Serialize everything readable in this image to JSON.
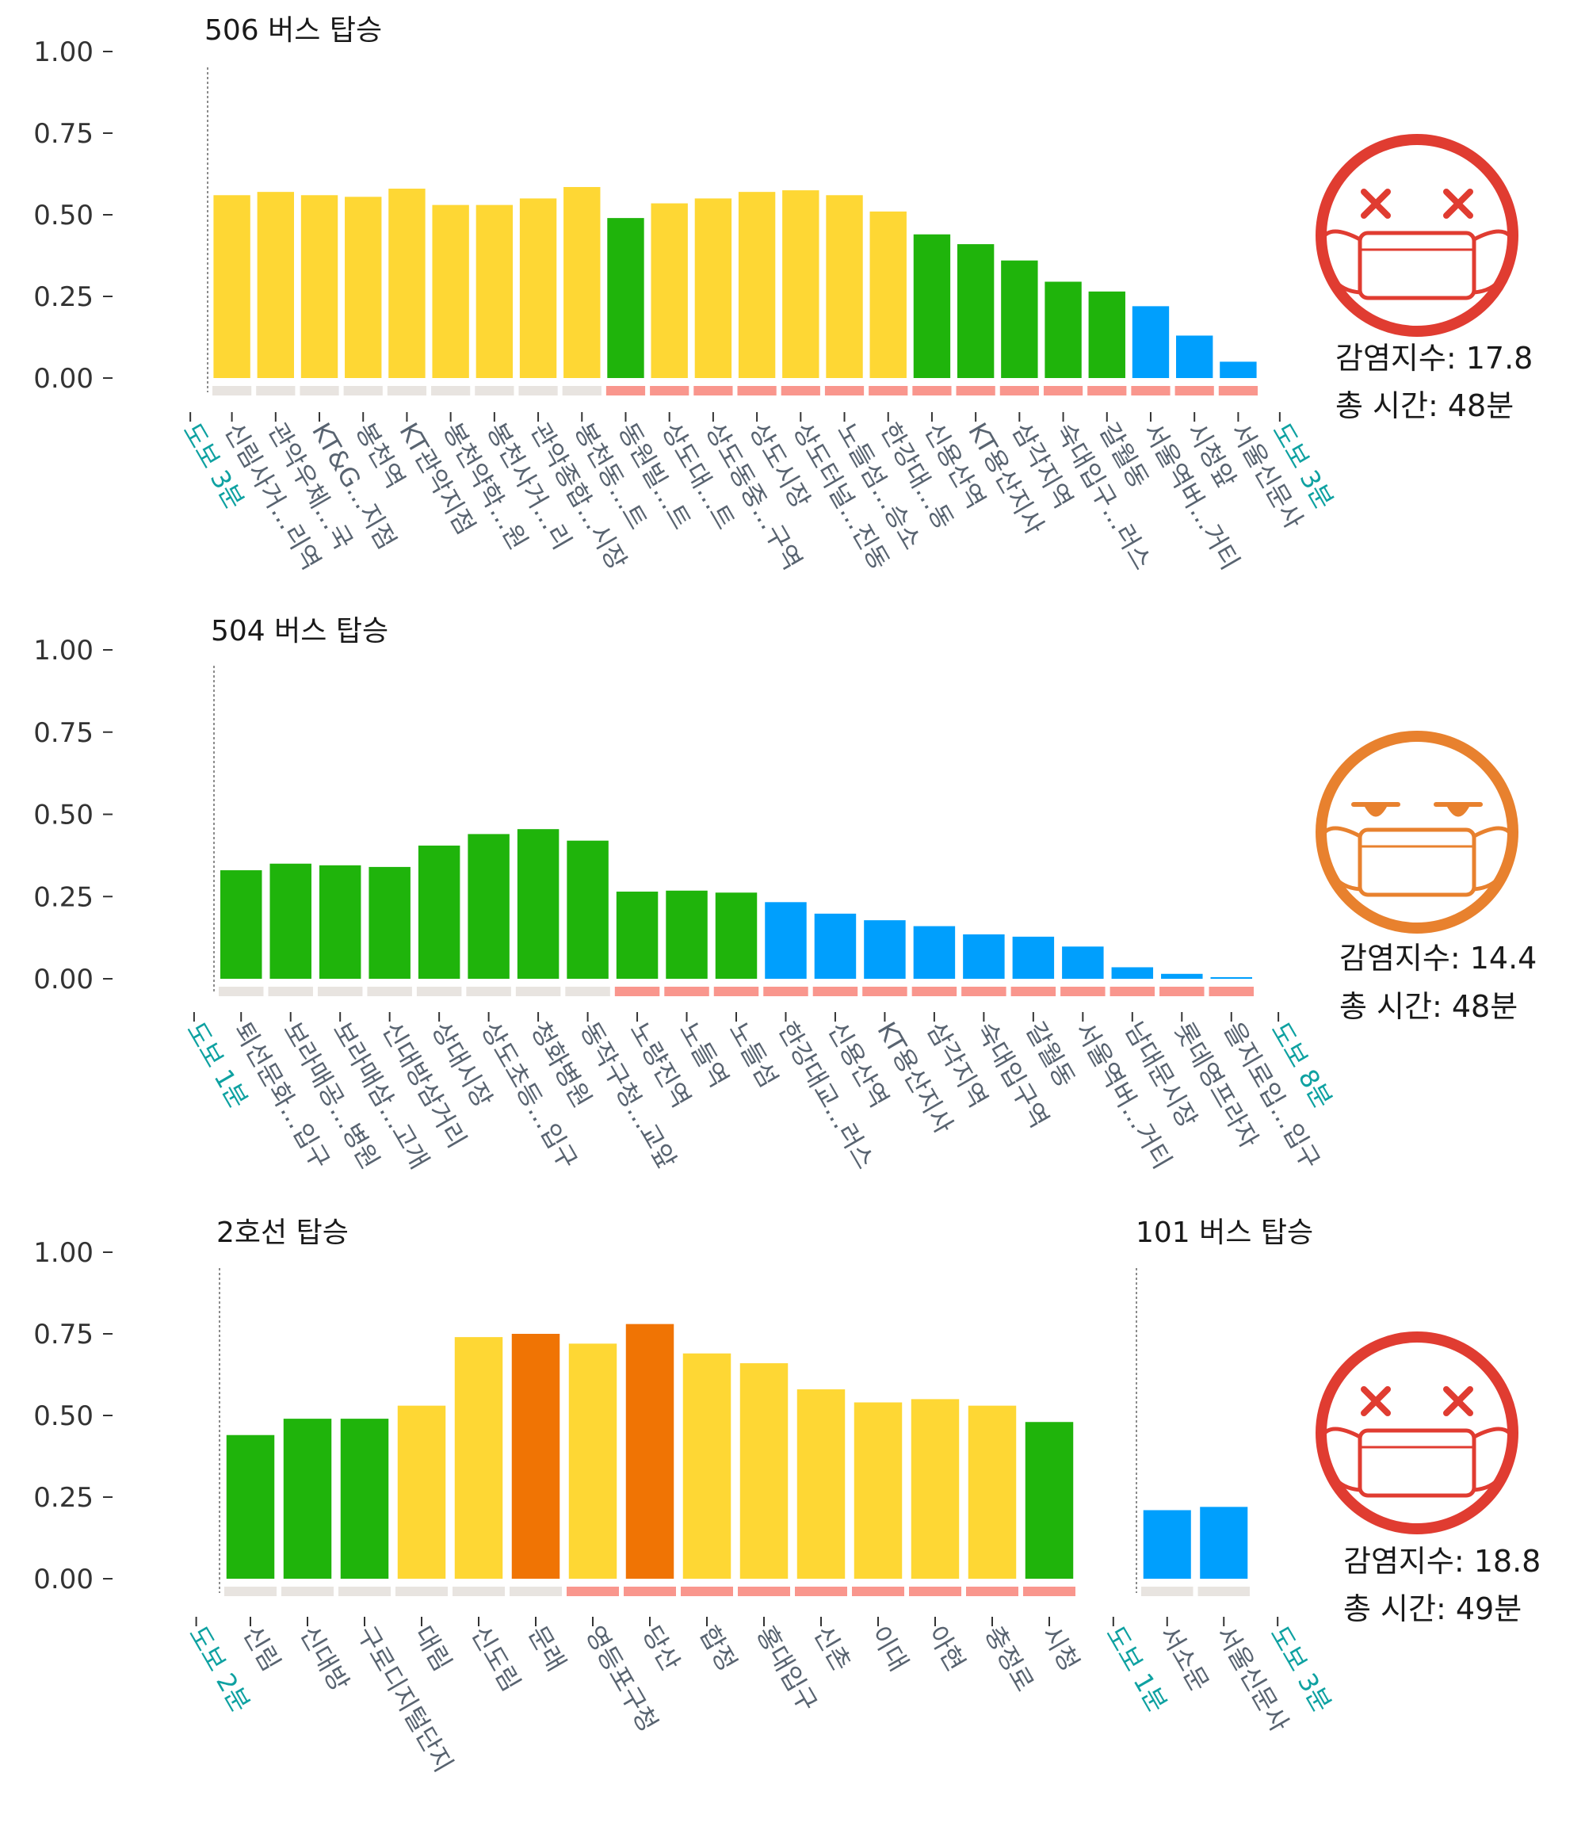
{
  "colors": {
    "green": "#1fb40b",
    "yellow": "#fed734",
    "orange": "#f07404",
    "blue": "#009ffd",
    "walk_text": "#0ea1a1",
    "stop_text": "#586370",
    "strip_gray": "#e8e4e0",
    "strip_pink": "#f9968d",
    "face_red": "#e03c31",
    "face_orange": "#e8812e",
    "axis_text": "#333333"
  },
  "chart_data": [
    {
      "type": "bar",
      "ylim": [
        0,
        1
      ],
      "yticks": [
        "0.00",
        "0.25",
        "0.50",
        "0.75",
        "1.00"
      ],
      "segments": [
        {
          "title": "506 버스 탑승",
          "walk_before": "도보 3분",
          "walk_after": "도보 3분",
          "categories": [
            "신림사거...리역",
            "관악우체...국",
            "KT&G...지점",
            "봉천역",
            "KT관악지점",
            "봉천약학...원",
            "봉천사거...리",
            "관악종합...시장",
            "봉천동...트",
            "동원빌...트",
            "상도대...트",
            "상도동중...구역",
            "상도시장",
            "상도터널...진동",
            "노들섬...승소",
            "한강대...동",
            "신용산역",
            "KT용산지사",
            "삼각지역",
            "숙대입구...러스",
            "갈월동",
            "서울역버...거티",
            "시청앞",
            "서울신문사"
          ],
          "values": [
            0.56,
            0.57,
            0.56,
            0.555,
            0.58,
            0.53,
            0.53,
            0.55,
            0.585,
            0.49,
            0.535,
            0.55,
            0.57,
            0.575,
            0.56,
            0.51,
            0.44,
            0.41,
            0.36,
            0.295,
            0.265,
            0.22,
            0.13,
            0.05
          ],
          "bar_colors": [
            "yellow",
            "yellow",
            "yellow",
            "yellow",
            "yellow",
            "yellow",
            "yellow",
            "yellow",
            "yellow",
            "green",
            "yellow",
            "yellow",
            "yellow",
            "yellow",
            "yellow",
            "yellow",
            "green",
            "green",
            "green",
            "green",
            "green",
            "blue",
            "blue",
            "blue"
          ],
          "strip_colors": [
            "gray",
            "gray",
            "gray",
            "gray",
            "gray",
            "gray",
            "gray",
            "gray",
            "gray",
            "pink",
            "pink",
            "pink",
            "pink",
            "pink",
            "pink",
            "pink",
            "pink",
            "pink",
            "pink",
            "pink",
            "pink",
            "pink",
            "pink",
            "pink"
          ]
        }
      ],
      "face": "dizzy",
      "infection_index": "감염지수: 17.8",
      "total_time": "총 시간: 48분"
    },
    {
      "type": "bar",
      "ylim": [
        0,
        1
      ],
      "yticks": [
        "0.00",
        "0.25",
        "0.50",
        "0.75",
        "1.00"
      ],
      "segments": [
        {
          "title": "504 버스 탑승",
          "walk_before": "도보 1분",
          "walk_after": "도보 8분",
          "categories": [
            "퇴선문화...입구",
            "보라매공...병원",
            "보라매삼...고개",
            "신대방삼거리",
            "상대시장",
            "상도초등...입구",
            "청화병원",
            "동작구청...교앞",
            "노량진역",
            "노들역",
            "노들섬",
            "한강대교...러스",
            "신용산역",
            "KT용산지사",
            "삼각지역",
            "숙대입구역",
            "갈월동",
            "서울역버...거티",
            "남대문시장",
            "롯데영프라자",
            "을지로입...입구"
          ],
          "values": [
            0.33,
            0.35,
            0.345,
            0.34,
            0.405,
            0.44,
            0.455,
            0.42,
            0.265,
            0.268,
            0.262,
            0.233,
            0.198,
            0.178,
            0.16,
            0.135,
            0.128,
            0.098,
            0.035,
            0.015,
            0.005
          ],
          "bar_colors": [
            "green",
            "green",
            "green",
            "green",
            "green",
            "green",
            "green",
            "green",
            "green",
            "green",
            "green",
            "blue",
            "blue",
            "blue",
            "blue",
            "blue",
            "blue",
            "blue",
            "blue",
            "blue",
            "blue"
          ],
          "strip_colors": [
            "gray",
            "gray",
            "gray",
            "gray",
            "gray",
            "gray",
            "gray",
            "gray",
            "pink",
            "pink",
            "pink",
            "pink",
            "pink",
            "pink",
            "pink",
            "pink",
            "pink",
            "pink",
            "pink",
            "pink",
            "pink"
          ]
        }
      ],
      "face": "annoyed",
      "infection_index": "감염지수: 14.4",
      "total_time": "총 시간: 48분"
    },
    {
      "type": "bar",
      "ylim": [
        0,
        1
      ],
      "yticks": [
        "0.00",
        "0.25",
        "0.50",
        "0.75",
        "1.00"
      ],
      "segments": [
        {
          "title": "2호선 탑승",
          "walk_before": "도보 2분",
          "categories": [
            "신림",
            "신대방",
            "구로디지털단지",
            "대림",
            "신도림",
            "문래",
            "영등포구청",
            "당산",
            "합정",
            "홍대입구",
            "신촌",
            "이대",
            "아현",
            "충정로",
            "시청"
          ],
          "values": [
            0.44,
            0.49,
            0.49,
            0.53,
            0.74,
            0.75,
            0.72,
            0.78,
            0.69,
            0.66,
            0.58,
            0.54,
            0.55,
            0.53,
            0.48
          ],
          "bar_colors": [
            "green",
            "green",
            "green",
            "yellow",
            "yellow",
            "orange",
            "yellow",
            "orange",
            "yellow",
            "yellow",
            "yellow",
            "yellow",
            "yellow",
            "yellow",
            "green"
          ],
          "strip_colors": [
            "gray",
            "gray",
            "gray",
            "gray",
            "gray",
            "gray",
            "pink",
            "pink",
            "pink",
            "pink",
            "pink",
            "pink",
            "pink",
            "pink",
            "pink"
          ]
        },
        {
          "title": "101 버스 탑승",
          "walk_before": "도보 1분",
          "walk_after": "도보 3분",
          "categories": [
            "서소문",
            "서울신문사"
          ],
          "values": [
            0.21,
            0.22
          ],
          "bar_colors": [
            "blue",
            "blue"
          ],
          "strip_colors": [
            "gray",
            "gray"
          ]
        }
      ],
      "face": "dizzy",
      "infection_index": "감염지수: 18.8",
      "total_time": "총 시간: 49분"
    }
  ]
}
